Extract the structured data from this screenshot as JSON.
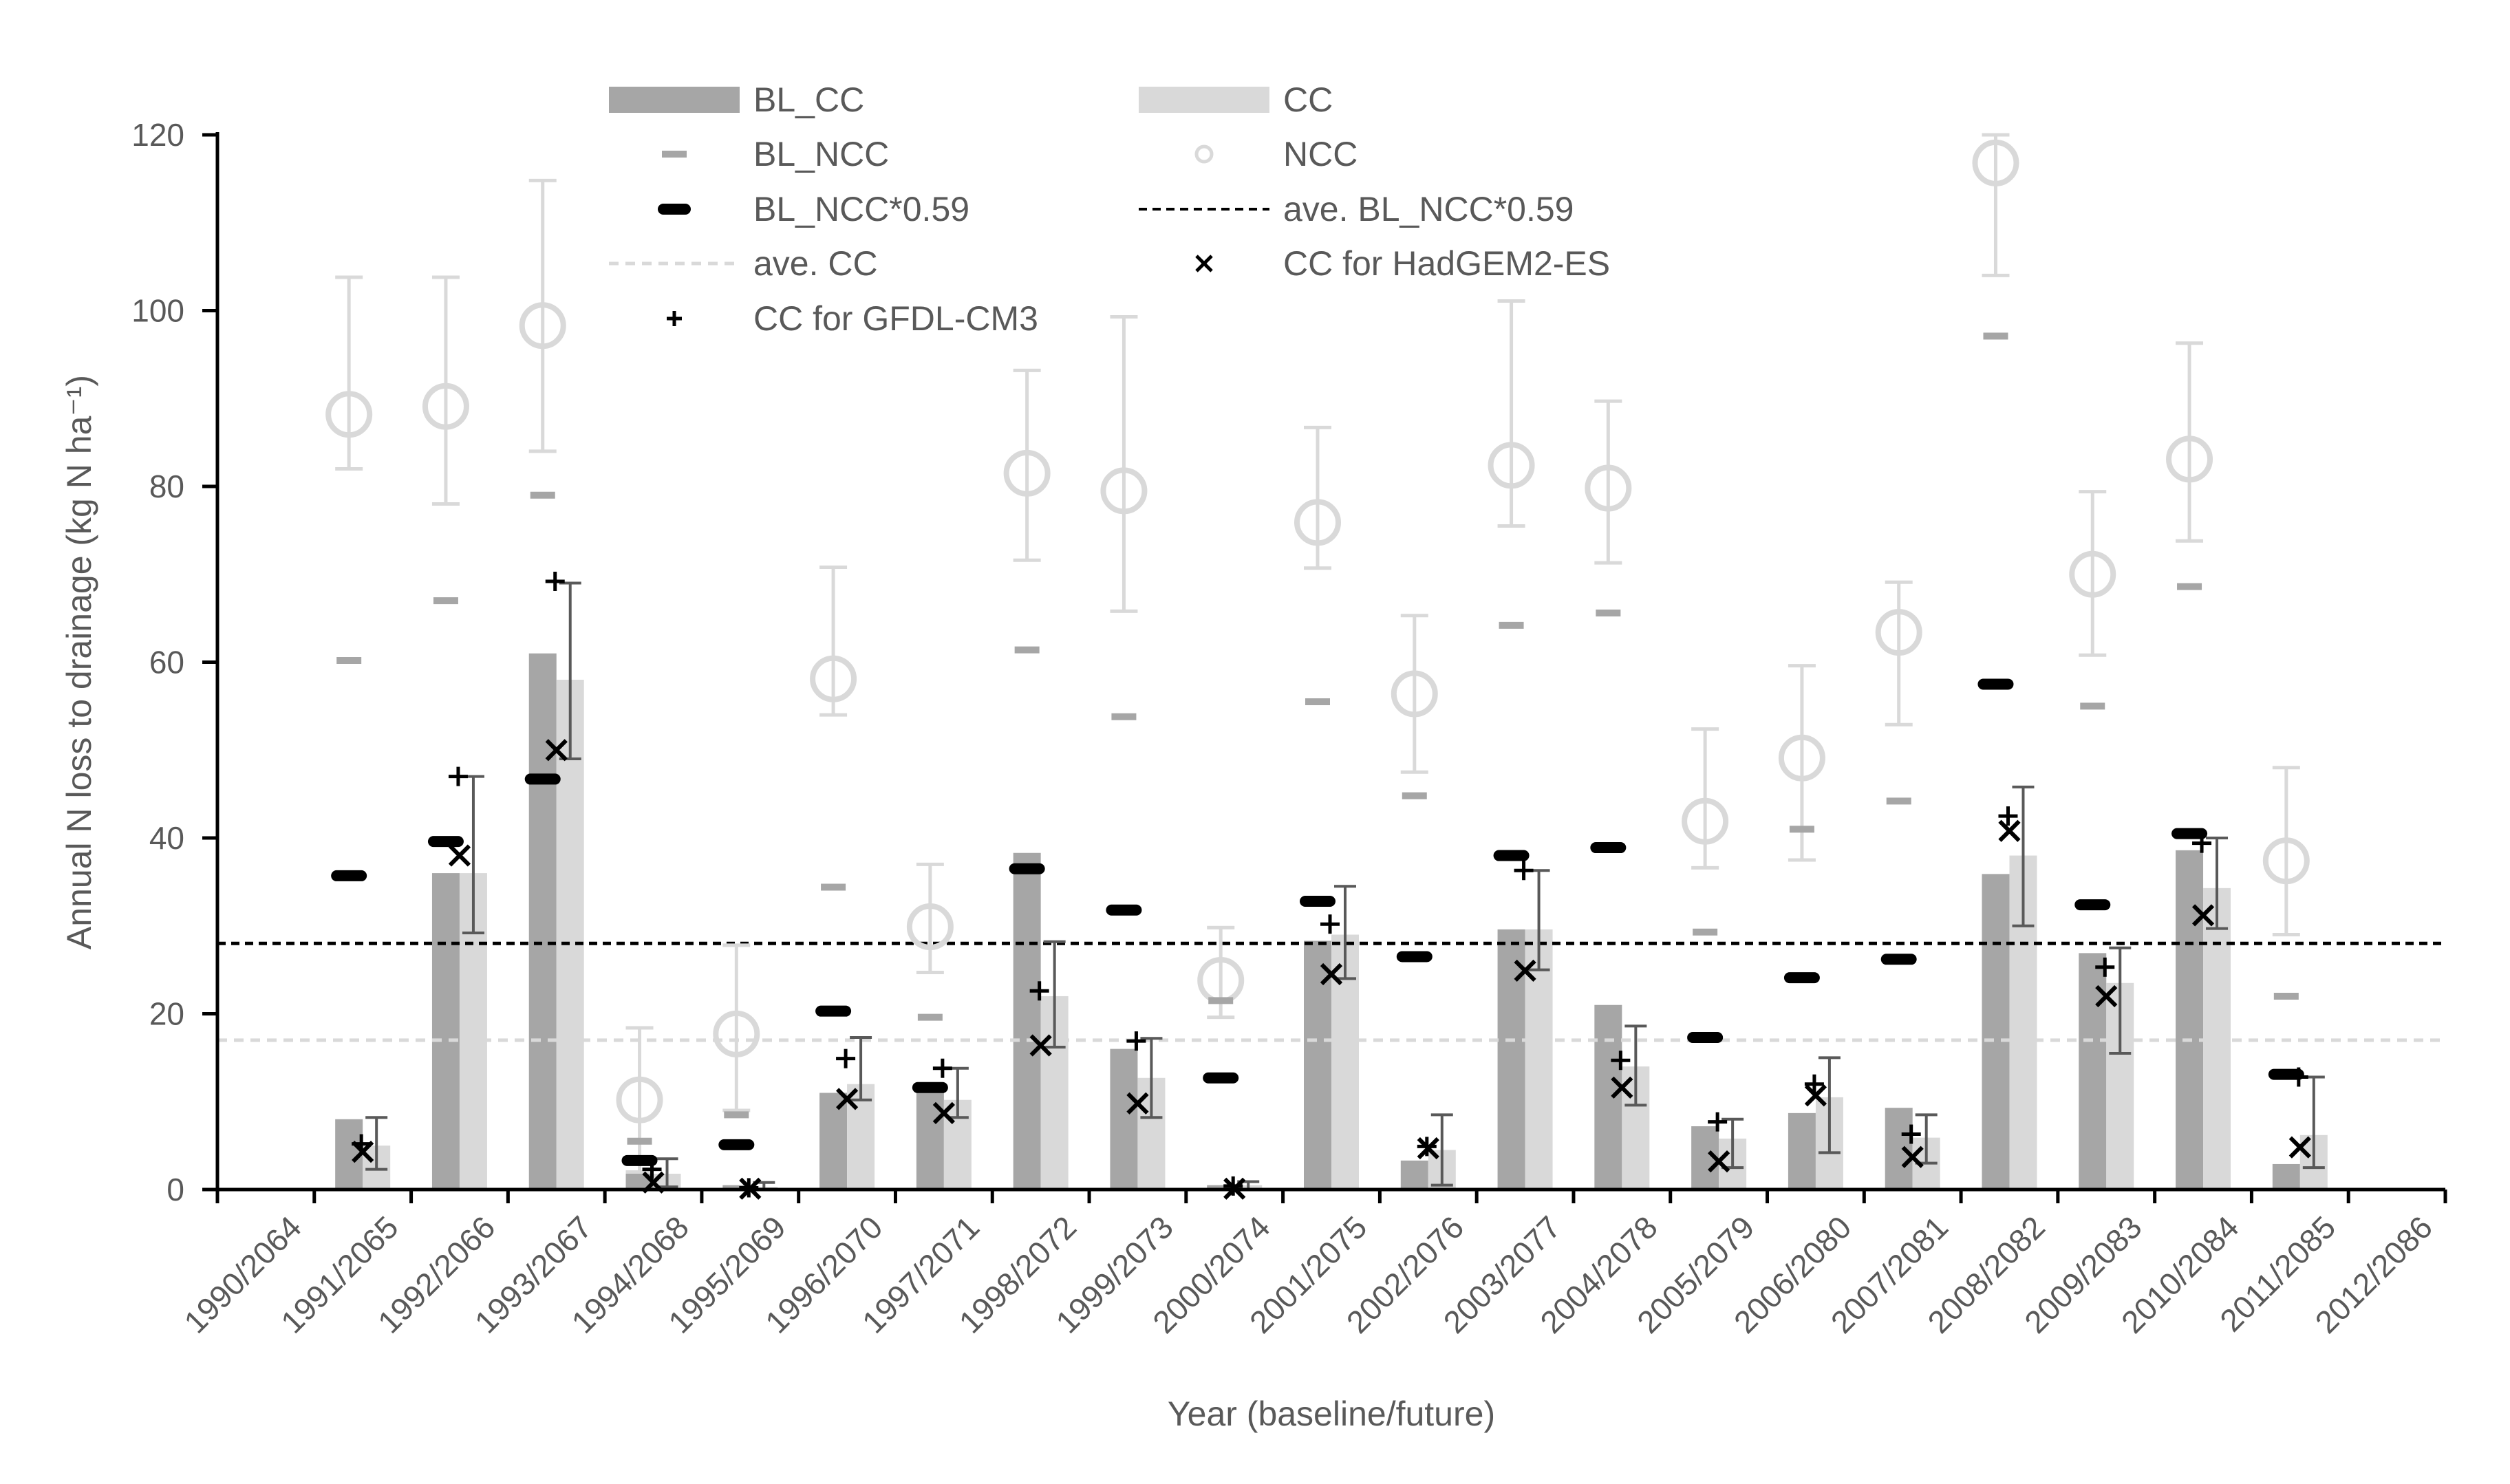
{
  "chart_data": {
    "type": "bar",
    "title": "",
    "xlabel": "Year (baseline/future)",
    "ylabel": "Annual N loss to drainage (kg N ha⁻¹)",
    "ylim": [
      0,
      120
    ],
    "yticks": [
      0,
      20,
      40,
      60,
      80,
      100,
      120
    ],
    "grid": false,
    "legend_position": "top",
    "categories": [
      "1990/2064",
      "1991/2065",
      "1992/2066",
      "1993/2067",
      "1994/2068",
      "1995/2069",
      "1996/2070",
      "1997/2071",
      "1998/2072",
      "1999/2073",
      "2000/2074",
      "2001/2075",
      "2002/2076",
      "2003/2077",
      "2004/2078",
      "2005/2079",
      "2006/2080",
      "2007/2081",
      "2008/2082",
      "2009/2083",
      "2010/2084",
      "2011/2085",
      "2012/2086"
    ],
    "series": [
      {
        "name": "BL_CC",
        "kind": "bar",
        "color": "#a6a6a6",
        "values": [
          null,
          8,
          36,
          61,
          1.8,
          0.5,
          11,
          12.2,
          38.3,
          16,
          0.5,
          28.3,
          3.3,
          29.6,
          21,
          7.2,
          8.7,
          9.3,
          35.9,
          26.9,
          38.6,
          2.9,
          null
        ]
      },
      {
        "name": "CC",
        "kind": "bar",
        "color": "#d9d9d9",
        "values": [
          null,
          5,
          36,
          58,
          1.8,
          0.3,
          12,
          10.2,
          22,
          12.7,
          0.5,
          29,
          4.5,
          29.6,
          14,
          5.8,
          10.5,
          5.9,
          38,
          23.5,
          34.3,
          6.2,
          null
        ],
        "error_low": [
          null,
          2.3,
          29.2,
          49,
          0.3,
          0,
          10.2,
          8.2,
          16.2,
          8.2,
          0,
          24,
          0.5,
          25,
          9.6,
          2.5,
          4.2,
          3,
          30,
          15.5,
          29.7,
          2.5,
          null
        ],
        "error_high": [
          null,
          8.2,
          47,
          69,
          3.5,
          0.8,
          17.3,
          13.8,
          28.2,
          17.2,
          0.9,
          34.5,
          8.5,
          36.3,
          18.6,
          8,
          15,
          8.5,
          45.8,
          27.5,
          40,
          12.8,
          null
        ]
      },
      {
        "name": "BL_NCC",
        "kind": "marker",
        "marker": "dash",
        "color": "#a6a6a6",
        "values": [
          null,
          60.2,
          67,
          79,
          5.5,
          8.5,
          34.4,
          19.6,
          61.4,
          53.8,
          21.5,
          55.5,
          44.8,
          64.2,
          65.6,
          29.3,
          41,
          44.2,
          97.1,
          55,
          68.6,
          22,
          null
        ]
      },
      {
        "name": "NCC",
        "kind": "marker",
        "marker": "circle",
        "color": "#d9d9d9",
        "values": [
          null,
          88.2,
          89.1,
          98.3,
          10.2,
          17.7,
          58.1,
          29.9,
          81.5,
          79.5,
          23.8,
          75.9,
          56.4,
          82.4,
          79.8,
          41.9,
          49.1,
          63.4,
          116.8,
          70,
          83.1,
          37.4,
          null
        ],
        "error_low": [
          null,
          82,
          78,
          84,
          2,
          9,
          54,
          24.7,
          71.6,
          65.8,
          19.6,
          70.7,
          47.5,
          75.5,
          71.3,
          36.6,
          37.5,
          52.9,
          104,
          60.8,
          73.8,
          29,
          null
        ],
        "error_high": [
          null,
          103.8,
          103.8,
          114.8,
          18.4,
          27.8,
          70.8,
          37,
          93.2,
          99.3,
          29.8,
          86.7,
          65.3,
          101.1,
          89.7,
          52.4,
          59.6,
          69.1,
          120,
          79.4,
          96.3,
          48,
          null
        ]
      },
      {
        "name": "BL_NCC*0.59",
        "kind": "marker",
        "marker": "thick-dash",
        "color": "#000000",
        "values": [
          null,
          35.7,
          39.6,
          46.7,
          3.3,
          5.1,
          20.3,
          11.6,
          36.5,
          31.8,
          12.7,
          32.8,
          26.5,
          38,
          38.9,
          17.3,
          24.1,
          26.2,
          57.5,
          32.4,
          40.5,
          13.1,
          null
        ]
      },
      {
        "name": "ave. BL_NCC*0.59",
        "kind": "hline",
        "style": "dashed",
        "color": "#000000",
        "value": 28
      },
      {
        "name": "ave. CC",
        "kind": "hline",
        "style": "dashed",
        "color": "#d9d9d9",
        "value": 17
      },
      {
        "name": "CC for HadGEM2-ES",
        "kind": "marker",
        "marker": "x",
        "color": "#000000",
        "values": [
          null,
          4.3,
          38,
          50,
          0.8,
          0.1,
          10.3,
          8.7,
          16.4,
          9.8,
          0.1,
          24.5,
          4.7,
          24.9,
          11.6,
          3.2,
          10.7,
          3.7,
          40.8,
          22,
          31.2,
          4.8,
          null
        ]
      },
      {
        "name": "CC for GFDL-CM3",
        "kind": "marker",
        "marker": "plus",
        "color": "#000000",
        "values": [
          null,
          5.2,
          47,
          69.2,
          2.3,
          0.2,
          14.9,
          13.8,
          22.6,
          16.9,
          0.4,
          30.2,
          4.9,
          36.3,
          14.7,
          7.7,
          12,
          6.3,
          42.5,
          25.3,
          39.4,
          12.8,
          null
        ]
      }
    ],
    "legend": [
      {
        "label": "BL_CC",
        "key": "bar-dark"
      },
      {
        "label": "CC",
        "key": "bar-light"
      },
      {
        "label": "BL_NCC",
        "key": "dash-grey"
      },
      {
        "label": "NCC",
        "key": "circle"
      },
      {
        "label": "BL_NCC*0.59",
        "key": "thick-dash"
      },
      {
        "label": "ave. BL_NCC*0.59",
        "key": "dashed-black"
      },
      {
        "label": "ave. CC",
        "key": "dashed-grey"
      },
      {
        "label": "CC for HadGEM2-ES",
        "key": "x"
      },
      {
        "label": "CC for GFDL-CM3",
        "key": "plus"
      }
    ]
  }
}
